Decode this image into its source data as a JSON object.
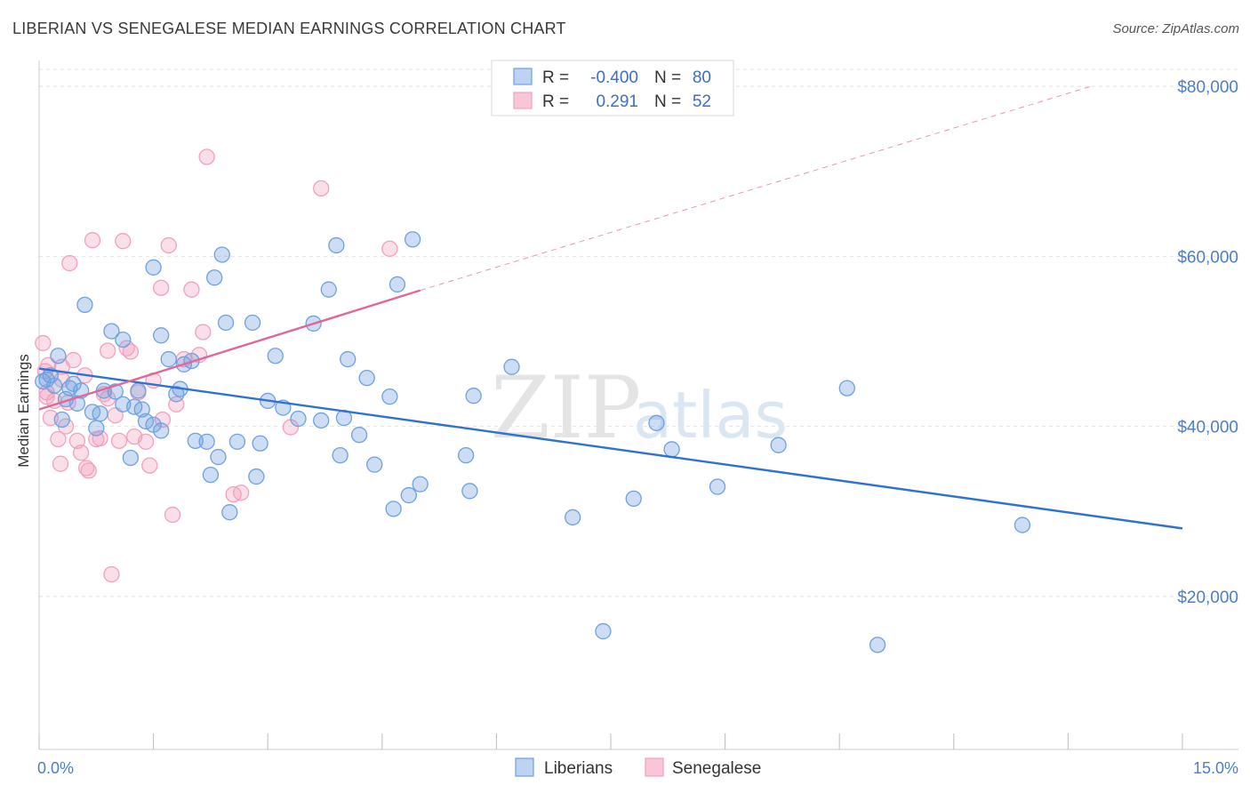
{
  "title": "LIBERIAN VS SENEGALESE MEDIAN EARNINGS CORRELATION CHART",
  "source": "Source: ZipAtlas.com",
  "watermark": {
    "zip": "ZIP",
    "atlas": "atlas"
  },
  "legend": {
    "rows": [
      {
        "r_label": "R =",
        "r_value": "-0.400",
        "n_label": "N =",
        "n_value": "80"
      },
      {
        "r_label": "R =",
        "r_value": "0.291",
        "n_label": "N =",
        "n_value": "52"
      }
    ]
  },
  "bottom_legend": [
    "Liberians",
    "Senegalese"
  ],
  "chart_data": {
    "type": "scatter",
    "title": "LIBERIAN VS SENEGALESE MEDIAN EARNINGS CORRELATION CHART",
    "xlabel": "",
    "ylabel": "Median Earnings",
    "xlim": [
      0,
      15
    ],
    "ylim": [
      2000,
      82000
    ],
    "x_tick_labels": [
      "0.0%",
      "15.0%"
    ],
    "y_ticks": [
      20000,
      40000,
      60000,
      80000
    ],
    "y_tick_labels": [
      "$20,000",
      "$40,000",
      "$60,000",
      "$80,000"
    ],
    "grid": true,
    "colors": {
      "liberians": "#6fa0e0",
      "senegalese": "#f2a0bd",
      "blue_line": "#2f72d2",
      "pink_line": "#e0679a"
    },
    "series": [
      {
        "name": "Liberians",
        "trend": {
          "x": [
            0.0,
            15.0
          ],
          "y": [
            46800,
            28000
          ]
        },
        "points": [
          [
            0.1,
            45500
          ],
          [
            0.15,
            46000
          ],
          [
            0.2,
            44800
          ],
          [
            0.25,
            48300
          ],
          [
            0.3,
            40800
          ],
          [
            0.35,
            43200
          ],
          [
            0.4,
            44500
          ],
          [
            0.45,
            45000
          ],
          [
            0.5,
            42700
          ],
          [
            0.55,
            44200
          ],
          [
            0.6,
            54300
          ],
          [
            0.7,
            41700
          ],
          [
            0.75,
            39800
          ],
          [
            0.8,
            41500
          ],
          [
            0.85,
            44200
          ],
          [
            0.95,
            51200
          ],
          [
            1.0,
            44100
          ],
          [
            1.1,
            42600
          ],
          [
            1.1,
            50200
          ],
          [
            1.2,
            36300
          ],
          [
            1.25,
            42300
          ],
          [
            1.3,
            44200
          ],
          [
            1.35,
            42000
          ],
          [
            1.4,
            40600
          ],
          [
            1.5,
            58700
          ],
          [
            1.5,
            40200
          ],
          [
            1.6,
            50700
          ],
          [
            1.6,
            39500
          ],
          [
            1.7,
            47900
          ],
          [
            1.8,
            43800
          ],
          [
            1.85,
            44400
          ],
          [
            1.9,
            47300
          ],
          [
            2.0,
            47700
          ],
          [
            2.05,
            38300
          ],
          [
            2.2,
            38200
          ],
          [
            2.25,
            34300
          ],
          [
            2.3,
            57500
          ],
          [
            2.35,
            36400
          ],
          [
            2.4,
            60200
          ],
          [
            2.45,
            52200
          ],
          [
            2.5,
            29900
          ],
          [
            2.6,
            38200
          ],
          [
            2.8,
            52200
          ],
          [
            2.85,
            34100
          ],
          [
            2.9,
            38000
          ],
          [
            3.0,
            43000
          ],
          [
            3.1,
            48300
          ],
          [
            3.2,
            42200
          ],
          [
            3.4,
            40900
          ],
          [
            3.6,
            52100
          ],
          [
            3.7,
            40700
          ],
          [
            3.8,
            56100
          ],
          [
            3.9,
            61300
          ],
          [
            3.95,
            36600
          ],
          [
            4.0,
            41000
          ],
          [
            4.05,
            47900
          ],
          [
            4.2,
            39000
          ],
          [
            4.3,
            45700
          ],
          [
            4.4,
            35500
          ],
          [
            4.6,
            43500
          ],
          [
            4.65,
            30300
          ],
          [
            4.7,
            56700
          ],
          [
            4.85,
            31900
          ],
          [
            4.9,
            62000
          ],
          [
            5.0,
            33200
          ],
          [
            5.6,
            36600
          ],
          [
            5.65,
            32400
          ],
          [
            5.7,
            43600
          ],
          [
            6.2,
            47000
          ],
          [
            7.0,
            29300
          ],
          [
            7.4,
            15900
          ],
          [
            7.8,
            31500
          ],
          [
            8.1,
            40400
          ],
          [
            8.3,
            37300
          ],
          [
            8.9,
            32900
          ],
          [
            9.7,
            37800
          ],
          [
            10.6,
            44500
          ],
          [
            11.0,
            14300
          ],
          [
            12.9,
            28400
          ],
          [
            0.05,
            45300
          ]
        ]
      },
      {
        "name": "Senegalese",
        "trend": {
          "x": [
            0.0,
            5.0
          ],
          "y": [
            42000,
            56000
          ]
        },
        "trend_extension": {
          "x": [
            5.0,
            13.8
          ],
          "y": [
            56000,
            80000
          ]
        },
        "points": [
          [
            0.05,
            49800
          ],
          [
            0.08,
            46500
          ],
          [
            0.1,
            44000
          ],
          [
            0.12,
            47200
          ],
          [
            0.15,
            41000
          ],
          [
            0.2,
            43000
          ],
          [
            0.25,
            38500
          ],
          [
            0.28,
            35600
          ],
          [
            0.3,
            45500
          ],
          [
            0.35,
            40000
          ],
          [
            0.38,
            42800
          ],
          [
            0.4,
            59200
          ],
          [
            0.45,
            47800
          ],
          [
            0.5,
            38300
          ],
          [
            0.55,
            36900
          ],
          [
            0.6,
            46000
          ],
          [
            0.62,
            35100
          ],
          [
            0.65,
            34800
          ],
          [
            0.7,
            61900
          ],
          [
            0.75,
            38500
          ],
          [
            0.8,
            38600
          ],
          [
            0.85,
            43800
          ],
          [
            0.9,
            43300
          ],
          [
            0.95,
            22600
          ],
          [
            1.0,
            41300
          ],
          [
            1.05,
            38300
          ],
          [
            1.1,
            61800
          ],
          [
            1.15,
            49200
          ],
          [
            1.2,
            48800
          ],
          [
            1.25,
            38800
          ],
          [
            1.3,
            44000
          ],
          [
            1.4,
            38200
          ],
          [
            1.45,
            35400
          ],
          [
            1.5,
            45400
          ],
          [
            1.6,
            56300
          ],
          [
            1.62,
            40800
          ],
          [
            1.7,
            61300
          ],
          [
            1.75,
            29600
          ],
          [
            1.9,
            47900
          ],
          [
            2.0,
            56100
          ],
          [
            2.1,
            48400
          ],
          [
            2.15,
            51100
          ],
          [
            2.2,
            71700
          ],
          [
            2.55,
            32000
          ],
          [
            2.65,
            32200
          ],
          [
            3.3,
            39900
          ],
          [
            3.7,
            68000
          ],
          [
            4.6,
            60900
          ],
          [
            0.9,
            48900
          ],
          [
            1.8,
            42600
          ],
          [
            0.1,
            43500
          ],
          [
            0.3,
            47000
          ]
        ]
      }
    ]
  }
}
